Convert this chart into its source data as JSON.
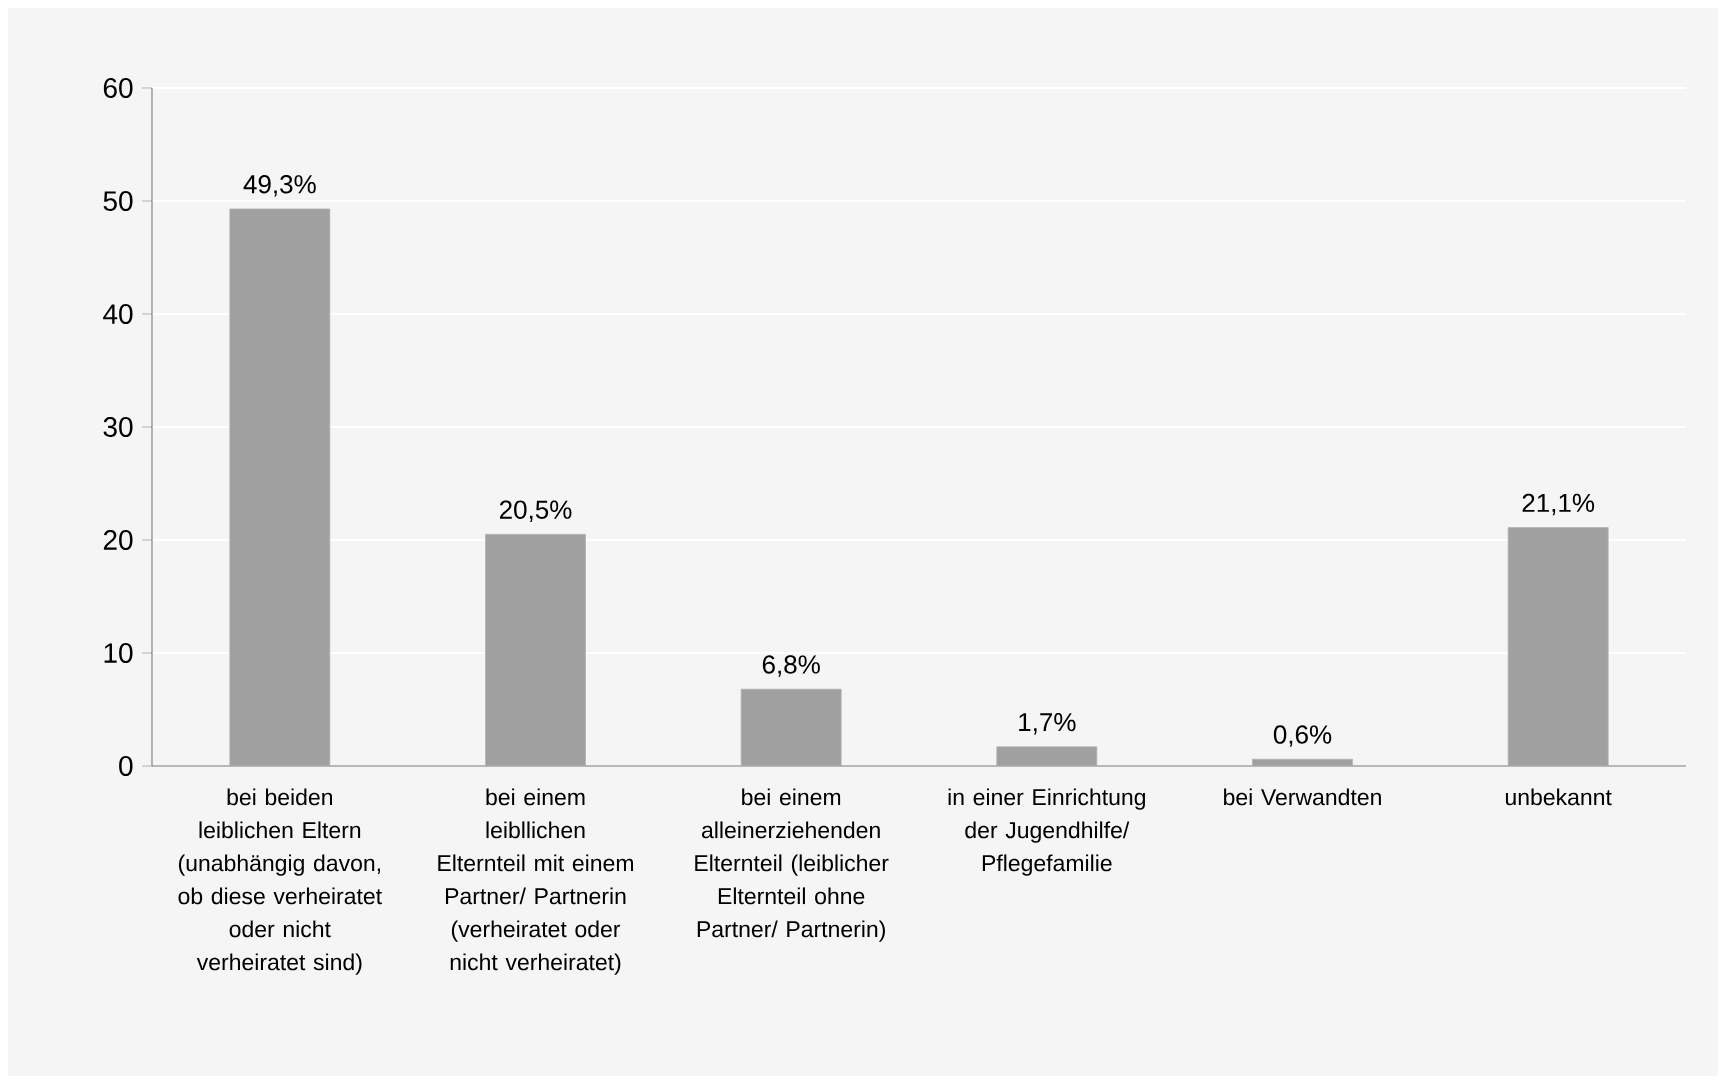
{
  "chart_data": {
    "type": "bar",
    "categories": [
      "bei beiden leiblichen Eltern (unabhängig davon, ob diese verheiratet oder nicht verheiratet sind)",
      "bei einem leibllichen Elternteil mit einem Partner/ Partnerin (verheiratet oder nicht verheiratet)",
      "bei einem alleinerziehenden Elternteil (leiblicher Elternteil ohne Partner/ Partnerin)",
      "in einer Einrichtung der Jugendhilfe/ Pflegefamilie",
      "bei Verwandten",
      "unbekannt"
    ],
    "values": [
      49.3,
      20.5,
      6.8,
      1.7,
      0.6,
      21.1
    ],
    "value_labels": [
      "49,3%",
      "20,5%",
      "6,8%",
      "1,7%",
      "0,6%",
      "21,1%"
    ],
    "color": "#a0a0a0",
    "ylim": [
      0,
      60
    ],
    "yticks": [
      0,
      10,
      20,
      30,
      40,
      50,
      60
    ],
    "grid": "y"
  }
}
